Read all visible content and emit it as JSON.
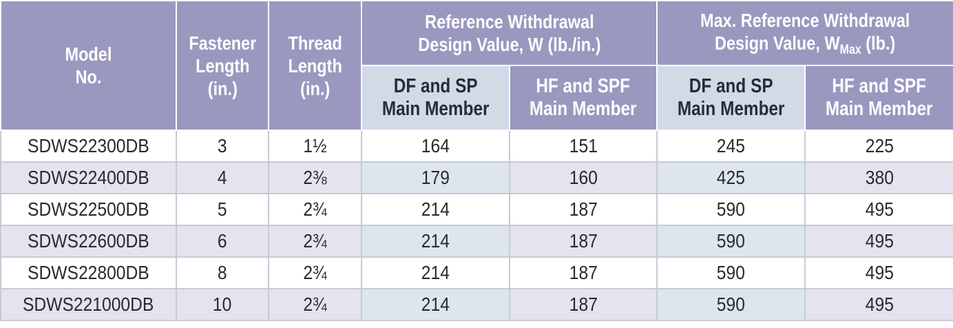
{
  "header": {
    "model": [
      "Model",
      "No."
    ],
    "fastener": [
      "Fastener",
      "Length",
      "(in.)"
    ],
    "thread": [
      "Thread",
      "Length",
      "(in.)"
    ],
    "ref_withdrawal": [
      "Reference Withdrawal",
      "Design Value, W (lb./in.)"
    ],
    "max_withdrawal_line1": "Max. Reference Withdrawal",
    "max_withdrawal_line2_a": "Design Value, W",
    "max_withdrawal_sub": "Max",
    "max_withdrawal_line2_b": " (lb.)",
    "df_sp": [
      "DF and SP",
      "Main Member"
    ],
    "hf_spf": [
      "HF and SPF",
      "Main Member"
    ]
  },
  "rows": [
    {
      "model": "SDWS22300DB",
      "fastener": "3",
      "thread": "1½",
      "w_df": "164",
      "w_hf": "151",
      "wmax_df": "245",
      "wmax_hf": "225"
    },
    {
      "model": "SDWS22400DB",
      "fastener": "4",
      "thread": "2⅜",
      "w_df": "179",
      "w_hf": "160",
      "wmax_df": "425",
      "wmax_hf": "380"
    },
    {
      "model": "SDWS22500DB",
      "fastener": "5",
      "thread": "2¾",
      "w_df": "214",
      "w_hf": "187",
      "wmax_df": "590",
      "wmax_hf": "495"
    },
    {
      "model": "SDWS22600DB",
      "fastener": "6",
      "thread": "2¾",
      "w_df": "214",
      "w_hf": "187",
      "wmax_df": "590",
      "wmax_hf": "495"
    },
    {
      "model": "SDWS22800DB",
      "fastener": "8",
      "thread": "2¾",
      "w_df": "214",
      "w_hf": "187",
      "wmax_df": "590",
      "wmax_hf": "495"
    },
    {
      "model": "SDWS221000DB",
      "fastener": "10",
      "thread": "2¾",
      "w_df": "214",
      "w_hf": "187",
      "wmax_df": "590",
      "wmax_hf": "495"
    }
  ]
}
